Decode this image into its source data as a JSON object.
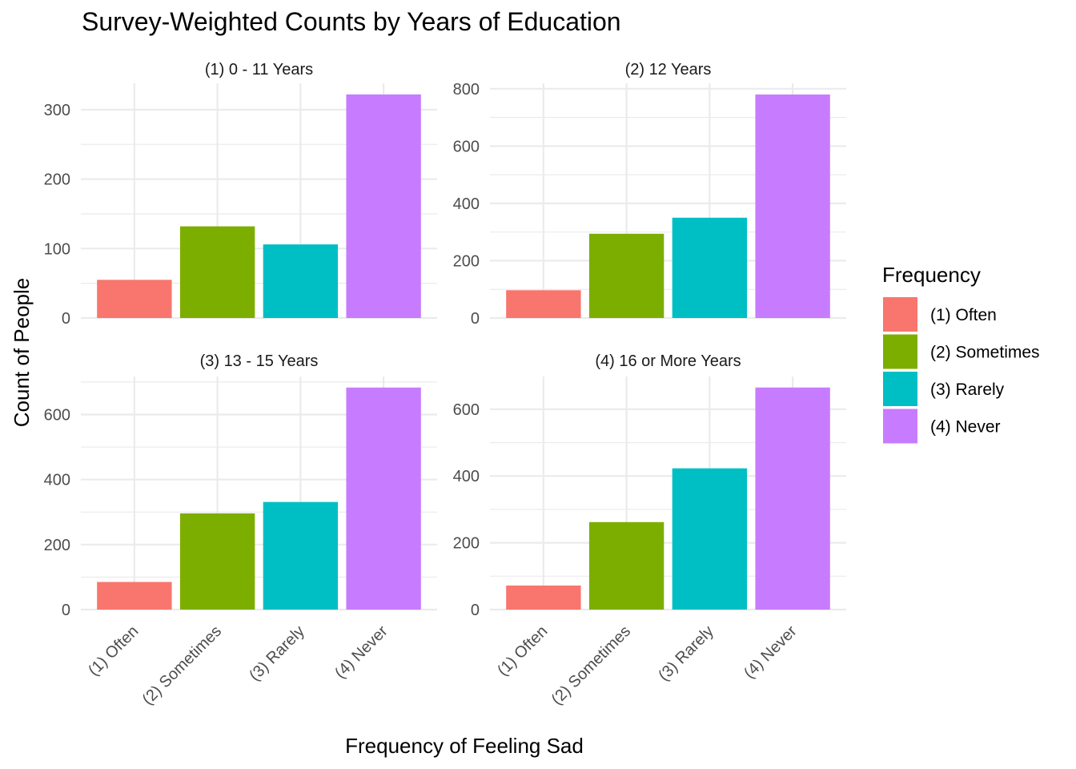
{
  "chart_data": {
    "type": "bar",
    "title": "Survey-Weighted Counts by Years of Education",
    "xlabel": "Frequency of Feeling Sad",
    "ylabel": "Count of People",
    "grid": true,
    "legend": {
      "title": "Frequency",
      "placement": "right",
      "entries": [
        "(1) Often",
        "(2) Sometimes",
        "(3) Rarely",
        "(4) Never"
      ]
    },
    "categories": [
      "(1) Often",
      "(2) Sometimes",
      "(3) Rarely",
      "(4) Never"
    ],
    "colors": [
      "#F8766D",
      "#7CAE00",
      "#00BFC4",
      "#C77CFF"
    ],
    "facets": [
      {
        "label": "(1) 0 - 11 Years",
        "values": [
          55,
          132,
          106,
          322
        ],
        "ylim": [
          0,
          338
        ],
        "yticks": [
          0,
          100,
          200,
          300
        ]
      },
      {
        "label": "(2) 12 Years",
        "values": [
          97,
          294,
          350,
          780
        ],
        "ylim": [
          0,
          819
        ],
        "yticks": [
          0,
          200,
          400,
          600,
          800
        ]
      },
      {
        "label": "(3) 13 - 15 Years",
        "values": [
          85,
          296,
          331,
          683
        ],
        "ylim": [
          0,
          717
        ],
        "yticks": [
          0,
          200,
          400,
          600
        ]
      },
      {
        "label": "(4) 16 or More Years",
        "values": [
          72,
          262,
          423,
          665
        ],
        "ylim": [
          0,
          698
        ],
        "yticks": [
          0,
          200,
          400,
          600
        ]
      }
    ]
  }
}
